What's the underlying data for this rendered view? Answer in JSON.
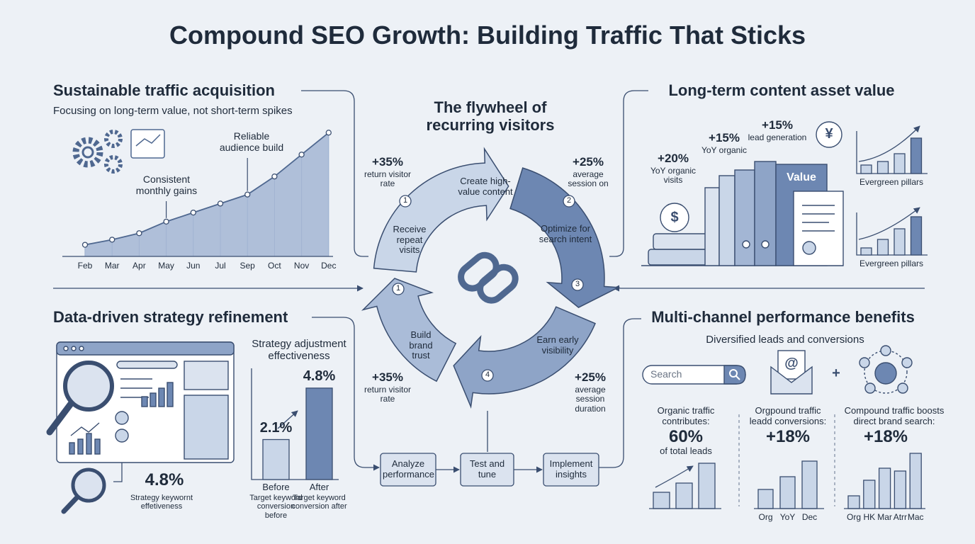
{
  "title": "Compound SEO Growth: Building Traffic That Sticks",
  "traffic": {
    "heading": "Sustainable traffic acquisition",
    "subtitle": "Focusing on long-term value, not short-term spikes",
    "chart": {
      "type": "area",
      "categories": [
        "Feb",
        "Mar",
        "Apr",
        "May",
        "Jun",
        "Jul",
        "Sep",
        "Oct",
        "Nov",
        "Dec"
      ],
      "values": [
        9,
        13,
        18,
        27,
        34,
        41,
        48,
        62,
        79,
        96
      ],
      "ylim": [
        0,
        100
      ],
      "color": "#a3b6d4",
      "annotations": [
        "Consistent monthly gains",
        "Reliable audience build"
      ]
    }
  },
  "flywheel": {
    "title": "The flywheel of recurring visitors",
    "steps": [
      "Create high-value content",
      "Optimize for search intent",
      "Earn early visibility",
      "Build brand trust",
      "Receive repeat visits"
    ],
    "badges": [
      "1",
      "2",
      "3",
      "4",
      "1"
    ],
    "stats": [
      {
        "value": "+35%",
        "label": "return visitor rate"
      },
      {
        "value": "+25%",
        "label": "average session on"
      },
      {
        "value": "+35%",
        "label": "return visitor rate"
      },
      {
        "value": "+25%",
        "label": "average session duration"
      }
    ],
    "process": [
      "Analyze performance",
      "Test and tune",
      "Implement insights"
    ]
  },
  "content_assets": {
    "heading": "Long-term content asset value",
    "stats": [
      {
        "value": "+20%",
        "label": "YoY organic visits"
      },
      {
        "value": "+15%",
        "label": "YoY organic"
      },
      {
        "value": "+15%",
        "label": "lead generation"
      }
    ],
    "book_label": "Value",
    "charts": [
      {
        "type": "bar",
        "label": "Evergreen pillars",
        "values": [
          12,
          17,
          28,
          50
        ],
        "ylim": [
          0,
          60
        ],
        "color": "#6d87b2"
      },
      {
        "type": "bar",
        "label": "Evergreen pillars",
        "values": [
          10,
          22,
          37,
          54
        ],
        "ylim": [
          0,
          60
        ],
        "color": "#6d87b2"
      }
    ]
  },
  "icons": {
    "dollar": "$",
    "yen": "¥",
    "email": "@",
    "plus": "+"
  },
  "strategy": {
    "heading": "Data-driven strategy refinement",
    "metric": "4.8%",
    "metric_label": "Strategy keywornt effetiveness",
    "chart": {
      "type": "bar",
      "title": "Strategy adjustment effectiveness",
      "categories": [
        "Before",
        "After"
      ],
      "sublabels": [
        "Target keyword conversion before",
        "Target keyword conversion after"
      ],
      "values": [
        2.1,
        4.8
      ],
      "value_labels": [
        "2.1%",
        "4.8%"
      ],
      "ylim": [
        0,
        5.8
      ],
      "color": "#6d87b2"
    }
  },
  "channels": {
    "heading": "Multi-channel performance benefits",
    "subtitle": "Diversified leads and conversions",
    "search_placeholder": "Search",
    "columns": [
      {
        "caption": "Organic traffic contributes:",
        "metric": "60%",
        "metric_label": "of total leads",
        "chart": {
          "type": "bar",
          "values": [
            23,
            36,
            64
          ],
          "ylim": [
            0,
            80
          ],
          "color": "#c9d6e8"
        }
      },
      {
        "caption": "Orgpound traffic leadd conversions:",
        "metric": "+18%",
        "chart": {
          "type": "bar",
          "categories": [
            "Org",
            "YoY",
            "Dec"
          ],
          "values": [
            27,
            45,
            67
          ],
          "ylim": [
            0,
            80
          ],
          "color": "#c9d6e8"
        }
      },
      {
        "caption": "Compound traffic boosts direct brand search:",
        "metric": "+18%",
        "chart": {
          "type": "bar",
          "categories": [
            "Org",
            "HK",
            "Mar",
            "Atrr",
            "Mac"
          ],
          "values": [
            18,
            40,
            57,
            53,
            78
          ],
          "ylim": [
            0,
            80
          ],
          "color": "#c9d6e8"
        }
      }
    ]
  }
}
